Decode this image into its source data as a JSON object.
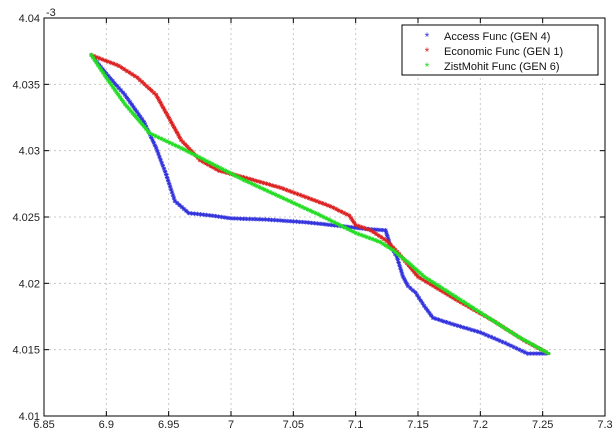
{
  "chart_data": {
    "type": "scatter",
    "title": "",
    "xlabel": "",
    "ylabel": "",
    "xlim": [
      6.85,
      7.3
    ],
    "ylim": [
      4.01,
      4.04
    ],
    "grid": true,
    "legend_placement": "top-right",
    "x_ticks": [
      "6.85",
      "6.9",
      "6.95",
      "7",
      "7.05",
      "7.1",
      "7.15",
      "7.2",
      "7.25",
      "7.3"
    ],
    "y_ticks": [
      "4.01",
      "4.015",
      "4.02",
      "4.025",
      "4.03",
      "4.035",
      "4.04"
    ],
    "y_tick_values": [
      4.01,
      4.015,
      4.02,
      4.025,
      4.03,
      4.035,
      4.04
    ],
    "x_tick_values": [
      6.85,
      6.9,
      6.95,
      7,
      7.05,
      7.1,
      7.15,
      7.2,
      7.25,
      7.3
    ],
    "y_exponent_label": "-3",
    "series": [
      {
        "name": "Access Func (GEN 4)",
        "color": "#3333dd",
        "marker": "*",
        "points": [
          [
            6.888,
            4.0372
          ],
          [
            6.9,
            4.0358
          ],
          [
            6.915,
            4.0342
          ],
          [
            6.93,
            4.0322
          ],
          [
            6.94,
            4.0302
          ],
          [
            6.948,
            4.0282
          ],
          [
            6.955,
            4.0262
          ],
          [
            6.966,
            4.0253
          ],
          [
            6.985,
            4.0251
          ],
          [
            7.0,
            4.0249
          ],
          [
            7.03,
            4.0248
          ],
          [
            7.06,
            4.0246
          ],
          [
            7.09,
            4.0243
          ],
          [
            7.108,
            4.0241
          ],
          [
            7.124,
            4.024
          ],
          [
            7.128,
            4.0228
          ],
          [
            7.133,
            4.022
          ],
          [
            7.138,
            4.0205
          ],
          [
            7.142,
            4.0198
          ],
          [
            7.148,
            4.0193
          ],
          [
            7.155,
            4.0183
          ],
          [
            7.162,
            4.0174
          ],
          [
            7.175,
            4.017
          ],
          [
            7.2,
            4.0163
          ],
          [
            7.22,
            4.0155
          ],
          [
            7.238,
            4.0147
          ],
          [
            7.255,
            4.0147
          ]
        ]
      },
      {
        "name": "Economic Func (GEN 1)",
        "color": "#dd2222",
        "marker": "*",
        "points": [
          [
            6.888,
            4.0372
          ],
          [
            6.91,
            4.0364
          ],
          [
            6.925,
            4.0355
          ],
          [
            6.94,
            4.0342
          ],
          [
            6.95,
            4.0325
          ],
          [
            6.96,
            4.0308
          ],
          [
            6.975,
            4.0293
          ],
          [
            6.99,
            4.0285
          ],
          [
            7.01,
            4.028
          ],
          [
            7.04,
            4.0272
          ],
          [
            7.06,
            4.0265
          ],
          [
            7.08,
            4.0258
          ],
          [
            7.095,
            4.0251
          ],
          [
            7.1,
            4.0244
          ],
          [
            7.112,
            4.024
          ],
          [
            7.125,
            4.0232
          ],
          [
            7.135,
            4.0222
          ],
          [
            7.15,
            4.0205
          ],
          [
            7.18,
            4.0188
          ],
          [
            7.21,
            4.0172
          ],
          [
            7.235,
            4.0157
          ],
          [
            7.255,
            4.0147
          ]
        ]
      },
      {
        "name": "ZistMohit Func (GEN 6)",
        "color": "#22dd22",
        "marker": "*",
        "points": [
          [
            6.888,
            4.0372
          ],
          [
            6.9,
            4.0355
          ],
          [
            6.915,
            4.0335
          ],
          [
            6.935,
            4.0313
          ],
          [
            6.96,
            4.0302
          ],
          [
            6.985,
            4.029
          ],
          [
            7.01,
            4.0278
          ],
          [
            7.04,
            4.0265
          ],
          [
            7.07,
            4.0252
          ],
          [
            7.1,
            4.0238
          ],
          [
            7.12,
            4.0231
          ],
          [
            7.13,
            4.0225
          ],
          [
            7.143,
            4.0215
          ],
          [
            7.155,
            4.0205
          ],
          [
            7.18,
            4.019
          ],
          [
            7.205,
            4.0175
          ],
          [
            7.23,
            4.016
          ],
          [
            7.255,
            4.0147
          ]
        ]
      }
    ]
  }
}
